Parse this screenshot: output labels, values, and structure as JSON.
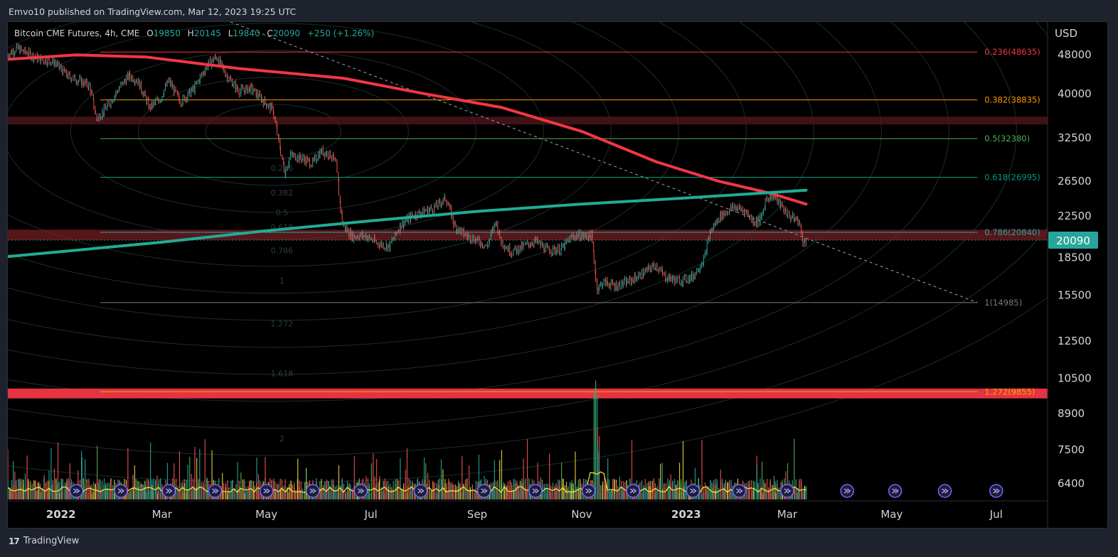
{
  "header": {
    "publisher_text": "Emvo10 published on TradingView.com, Mar 12, 2023 19:25 UTC"
  },
  "legend": {
    "symbol": "Bitcoin CME Futures, 4h, CME",
    "open_label": "O",
    "open": "19850",
    "high_label": "H",
    "high": "20145",
    "low_label": "L",
    "low": "19840",
    "close_label": "C",
    "close": "20090",
    "change": "+250 (+1.26%)"
  },
  "footer": {
    "brand": "TradingView",
    "logo_text": "17"
  },
  "colors": {
    "background": "#000000",
    "up": "#26a69a",
    "down": "#ef5350",
    "ma_red": "#f23645",
    "ma_teal": "#22ab94",
    "badge": "#26a69a"
  },
  "chart_data": {
    "type": "line",
    "title": "Bitcoin CME Futures, 4h, CME",
    "y_scale": "log",
    "ylim": [
      5900,
      56000
    ],
    "currency_label": "USD",
    "y_ticks": [
      48000,
      40000,
      32500,
      26500,
      22500,
      18500,
      15500,
      12500,
      10500,
      8900,
      7500,
      6400
    ],
    "x_range": [
      "2021-12-01",
      "2023-07-31"
    ],
    "x_ticks": [
      {
        "label": "2022",
        "date": "2022-01-01",
        "bold": true
      },
      {
        "label": "Mar",
        "date": "2022-03-01",
        "bold": false
      },
      {
        "label": "May",
        "date": "2022-05-01",
        "bold": false
      },
      {
        "label": "Jul",
        "date": "2022-07-01",
        "bold": false
      },
      {
        "label": "Sep",
        "date": "2022-09-01",
        "bold": false
      },
      {
        "label": "Nov",
        "date": "2022-11-01",
        "bold": false
      },
      {
        "label": "2023",
        "date": "2023-01-01",
        "bold": true
      },
      {
        "label": "Mar",
        "date": "2023-03-01",
        "bold": false
      },
      {
        "label": "May",
        "date": "2023-05-01",
        "bold": false
      },
      {
        "label": "Jul",
        "date": "2023-07-01",
        "bold": false
      }
    ],
    "last_price": 20090,
    "price_series": {
      "name": "Price (4h close, approx.)",
      "points": [
        [
          "2021-12-01",
          48000
        ],
        [
          "2021-12-06",
          49500
        ],
        [
          "2021-12-12",
          48500
        ],
        [
          "2021-12-20",
          47000
        ],
        [
          "2021-12-28",
          46500
        ],
        [
          "2022-01-05",
          43500
        ],
        [
          "2022-01-12",
          42500
        ],
        [
          "2022-01-18",
          41500
        ],
        [
          "2022-01-22",
          35500
        ],
        [
          "2022-01-28",
          37500
        ],
        [
          "2022-02-05",
          41500
        ],
        [
          "2022-02-10",
          43500
        ],
        [
          "2022-02-15",
          42500
        ],
        [
          "2022-02-22",
          37500
        ],
        [
          "2022-02-28",
          39000
        ],
        [
          "2022-03-05",
          42500
        ],
        [
          "2022-03-12",
          38500
        ],
        [
          "2022-03-20",
          41000
        ],
        [
          "2022-03-28",
          46000
        ],
        [
          "2022-04-02",
          47500
        ],
        [
          "2022-04-08",
          43500
        ],
        [
          "2022-04-15",
          40500
        ],
        [
          "2022-04-22",
          41000
        ],
        [
          "2022-04-30",
          38500
        ],
        [
          "2022-05-05",
          37000
        ],
        [
          "2022-05-09",
          31000
        ],
        [
          "2022-05-12",
          27500
        ],
        [
          "2022-05-15",
          30000
        ],
        [
          "2022-05-22",
          29500
        ],
        [
          "2022-05-28",
          28800
        ],
        [
          "2022-06-02",
          30500
        ],
        [
          "2022-06-08",
          30000
        ],
        [
          "2022-06-11",
          28500
        ],
        [
          "2022-06-13",
          24000
        ],
        [
          "2022-06-15",
          21500
        ],
        [
          "2022-06-20",
          20500
        ],
        [
          "2022-06-28",
          20500
        ],
        [
          "2022-07-05",
          19800
        ],
        [
          "2022-07-12",
          19500
        ],
        [
          "2022-07-18",
          21500
        ],
        [
          "2022-07-25",
          22500
        ],
        [
          "2022-08-01",
          23000
        ],
        [
          "2022-08-08",
          23500
        ],
        [
          "2022-08-14",
          24500
        ],
        [
          "2022-08-19",
          21500
        ],
        [
          "2022-08-26",
          20500
        ],
        [
          "2022-09-02",
          20000
        ],
        [
          "2022-09-07",
          19500
        ],
        [
          "2022-09-12",
          22000
        ],
        [
          "2022-09-15",
          20000
        ],
        [
          "2022-09-21",
          19000
        ],
        [
          "2022-09-28",
          19500
        ],
        [
          "2022-10-05",
          20000
        ],
        [
          "2022-10-12",
          19200
        ],
        [
          "2022-10-20",
          19200
        ],
        [
          "2022-10-27",
          20500
        ],
        [
          "2022-11-03",
          20500
        ],
        [
          "2022-11-07",
          20500
        ],
        [
          "2022-11-09",
          17500
        ],
        [
          "2022-11-10",
          16000
        ],
        [
          "2022-11-14",
          16500
        ],
        [
          "2022-11-21",
          16200
        ],
        [
          "2022-11-28",
          16500
        ],
        [
          "2022-12-05",
          17000
        ],
        [
          "2022-12-14",
          17900
        ],
        [
          "2022-12-20",
          16900
        ],
        [
          "2022-12-28",
          16600
        ],
        [
          "2023-01-05",
          16900
        ],
        [
          "2023-01-12",
          18500
        ],
        [
          "2023-01-15",
          20800
        ],
        [
          "2023-01-21",
          22500
        ],
        [
          "2023-01-29",
          23500
        ],
        [
          "2023-02-05",
          23000
        ],
        [
          "2023-02-10",
          21900
        ],
        [
          "2023-02-14",
          22200
        ],
        [
          "2023-02-17",
          24500
        ],
        [
          "2023-02-21",
          24800
        ],
        [
          "2023-02-26",
          23500
        ],
        [
          "2023-03-03",
          22400
        ],
        [
          "2023-03-08",
          22000
        ],
        [
          "2023-03-10",
          20300
        ],
        [
          "2023-03-11",
          19850
        ],
        [
          "2023-03-12",
          20090
        ]
      ]
    },
    "moving_averages": [
      {
        "name": "MA red (long period)",
        "color": "#f23645",
        "points": [
          [
            "2021-12-01",
            47000
          ],
          [
            "2022-01-10",
            48000
          ],
          [
            "2022-02-20",
            47500
          ],
          [
            "2022-04-15",
            45000
          ],
          [
            "2022-06-15",
            43000
          ],
          [
            "2022-08-01",
            40000
          ],
          [
            "2022-09-15",
            37500
          ],
          [
            "2022-11-01",
            33500
          ],
          [
            "2022-12-15",
            29000
          ],
          [
            "2023-01-20",
            26500
          ],
          [
            "2023-02-20",
            25000
          ],
          [
            "2023-03-12",
            23800
          ]
        ]
      },
      {
        "name": "MA teal (longer period)",
        "color": "#22ab94",
        "points": [
          [
            "2021-12-01",
            18600
          ],
          [
            "2022-03-01",
            19900
          ],
          [
            "2022-05-01",
            21000
          ],
          [
            "2022-07-01",
            22000
          ],
          [
            "2022-09-01",
            23000
          ],
          [
            "2022-11-01",
            23800
          ],
          [
            "2023-01-01",
            24500
          ],
          [
            "2023-03-12",
            25400
          ]
        ]
      }
    ],
    "fib_levels": [
      {
        "ratio": "0.236",
        "value": 48635,
        "label": "0.236(48635)",
        "color": "#f23645"
      },
      {
        "ratio": "0.382",
        "value": 38835,
        "label": "0.382(38835)",
        "color": "#ff9800"
      },
      {
        "ratio": "0.5",
        "value": 32380,
        "label": "0.5(32380)",
        "color": "#4caf50"
      },
      {
        "ratio": "0.618",
        "value": 26995,
        "label": "0.618(26995)",
        "color": "#089981"
      },
      {
        "ratio": "0.786",
        "value": 20840,
        "label": "0.786(20840)",
        "color": "#26a69a"
      },
      {
        "ratio": "1",
        "value": 14985,
        "label": "1(14985)",
        "color": "#787b86"
      },
      {
        "ratio": "1.272",
        "value": 9855,
        "label": "1.272(9855)",
        "color": "#f7a600"
      }
    ],
    "faint_fib_labels": [
      {
        "label": "0.236",
        "value": 27800
      },
      {
        "label": "0.382",
        "value": 24800
      },
      {
        "label": "0.5",
        "value": 22600
      },
      {
        "label": "0.618",
        "value": 21100
      },
      {
        "label": "0.786",
        "value": 18900
      },
      {
        "label": "1",
        "value": 16400
      },
      {
        "label": "1.272",
        "value": 13400
      },
      {
        "label": "1.618",
        "value": 10600
      },
      {
        "label": "2",
        "value": 7800
      }
    ],
    "zones": [
      {
        "name": "resistance zone",
        "low": 34600,
        "high": 35900,
        "color": "#5a1a1e"
      },
      {
        "name": "support zone",
        "low": 20100,
        "high": 21100,
        "color": "#7a2025"
      },
      {
        "name": "lower zone",
        "low": 9550,
        "high": 10000,
        "color": "#f23645"
      }
    ],
    "trendline": {
      "start": [
        "2022-04-10",
        56000
      ],
      "end": [
        "2023-06-20",
        14985
      ]
    },
    "volume_peak": {
      "date": "2022-11-10"
    },
    "event_markers": [
      "2022-01-10",
      "2022-02-05",
      "2022-03-05",
      "2022-04-01",
      "2022-05-01",
      "2022-05-28",
      "2022-06-25",
      "2022-07-30",
      "2022-09-05",
      "2022-10-05",
      "2022-11-05",
      "2022-12-01",
      "2023-01-05",
      "2023-02-01",
      "2023-03-01",
      "2023-04-05",
      "2023-05-03",
      "2023-06-01",
      "2023-07-01"
    ]
  }
}
